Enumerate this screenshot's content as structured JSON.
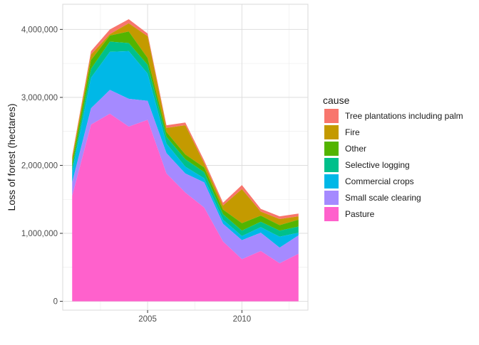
{
  "chart_data": {
    "type": "area",
    "stacked": true,
    "title": "",
    "xlabel": "",
    "ylabel": "Loss of forest (hectares)",
    "x": [
      2001,
      2002,
      2003,
      2004,
      2005,
      2006,
      2007,
      2008,
      2009,
      2010,
      2011,
      2012,
      2013
    ],
    "xlim": [
      2000.5,
      2013.5
    ],
    "ylim": [
      -130000,
      4370000
    ],
    "x_ticks": [
      2005,
      2010
    ],
    "y_ticks": [
      0,
      1000000,
      2000000,
      3000000,
      4000000
    ],
    "y_tick_labels": [
      "0",
      "1,000,000",
      "2,000,000",
      "3,000,000",
      "4,000,000"
    ],
    "grid": true,
    "legend_position": "right",
    "legend_title": "cause",
    "series": [
      {
        "name": "Pasture",
        "color": "#FF61CC",
        "values": [
          1550000,
          2600000,
          2760000,
          2570000,
          2670000,
          1880000,
          1600000,
          1380000,
          880000,
          620000,
          740000,
          560000,
          700000
        ]
      },
      {
        "name": "Small scale clearing",
        "color": "#A58AFF",
        "values": [
          200000,
          240000,
          350000,
          410000,
          280000,
          300000,
          280000,
          370000,
          260000,
          280000,
          270000,
          230000,
          270000
        ]
      },
      {
        "name": "Commercial crops",
        "color": "#00B8E7",
        "values": [
          150000,
          450000,
          560000,
          700000,
          400000,
          140000,
          100000,
          60000,
          60000,
          60000,
          80000,
          160000,
          40000
        ]
      },
      {
        "name": "Selective logging",
        "color": "#00C08B",
        "values": [
          70000,
          130000,
          150000,
          120000,
          130000,
          100000,
          110000,
          90000,
          80000,
          80000,
          80000,
          90000,
          90000
        ]
      },
      {
        "name": "Other",
        "color": "#53B400",
        "values": [
          80000,
          130000,
          90000,
          170000,
          100000,
          70000,
          70000,
          70000,
          70000,
          110000,
          90000,
          80000,
          100000
        ]
      },
      {
        "name": "Fire",
        "color": "#C49A00",
        "values": [
          60000,
          80000,
          20000,
          120000,
          320000,
          60000,
          430000,
          60000,
          60000,
          500000,
          60000,
          90000,
          50000
        ]
      },
      {
        "name": "Tree plantations including palm",
        "color": "#F8766D",
        "values": [
          30000,
          50000,
          70000,
          60000,
          40000,
          40000,
          40000,
          40000,
          40000,
          60000,
          40000,
          40000,
          40000
        ]
      }
    ]
  }
}
